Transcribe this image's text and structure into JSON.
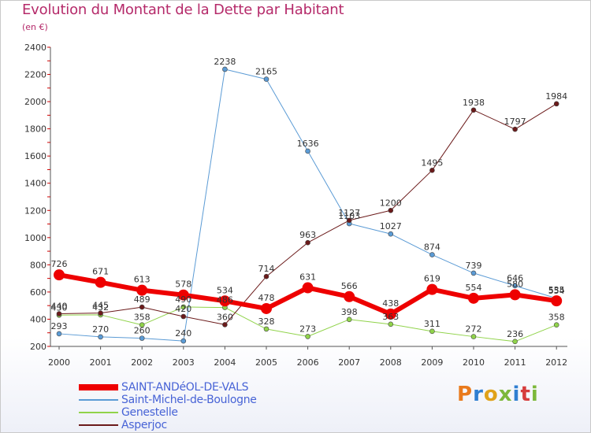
{
  "header": {
    "title": "Evolution du Montant de la Dette par Habitant",
    "unit": "(en €)"
  },
  "logo": {
    "text": "Proxiti",
    "colors": [
      "#e97a1c",
      "#2f7fd1",
      "#e0a21a",
      "#7cb83a",
      "#2f7fd1",
      "#d63c3c",
      "#7cb83a"
    ]
  },
  "colors": {
    "title": "#b52a6a",
    "legend_text": "#4763d6",
    "axis": "#555555",
    "grid": "#dddddd"
  },
  "chart_data": {
    "type": "line",
    "title": "Evolution du Montant de la Dette par Habitant",
    "ylabel": "(en €)",
    "x": [
      2000,
      2001,
      2002,
      2003,
      2004,
      2005,
      2006,
      2007,
      2008,
      2009,
      2010,
      2011,
      2012
    ],
    "ylim": [
      200,
      2400
    ],
    "yticks": [
      200,
      400,
      600,
      800,
      1000,
      1200,
      1400,
      1600,
      1800,
      2000,
      2200,
      2400
    ],
    "grid": false,
    "legend_position": "bottom-left",
    "series": [
      {
        "name": "SAINT-ANDéOL-DE-VALS",
        "color": "#ee0000",
        "width": 6,
        "marker": 7,
        "values": [
          726,
          671,
          613,
          578,
          534,
          478,
          631,
          566,
          438,
          619,
          554,
          580,
          535
        ]
      },
      {
        "name": "Saint-Michel-de-Boulogne",
        "color": "#5b9bd5",
        "width": 1,
        "marker": 3,
        "values": [
          293,
          270,
          260,
          240,
          2238,
          2165,
          1636,
          1103,
          1027,
          874,
          739,
          646,
          554
        ]
      },
      {
        "name": "Genestelle",
        "color": "#90d34a",
        "width": 1,
        "marker": 3,
        "values": [
          430,
          432,
          358,
          490,
          486,
          328,
          273,
          398,
          363,
          311,
          272,
          236,
          358
        ]
      },
      {
        "name": "Asperjoc",
        "color": "#6b1a1a",
        "width": 1,
        "marker": 3,
        "values": [
          440,
          445,
          489,
          420,
          360,
          714,
          963,
          1127,
          1200,
          1495,
          1938,
          1797,
          1984
        ]
      }
    ]
  }
}
